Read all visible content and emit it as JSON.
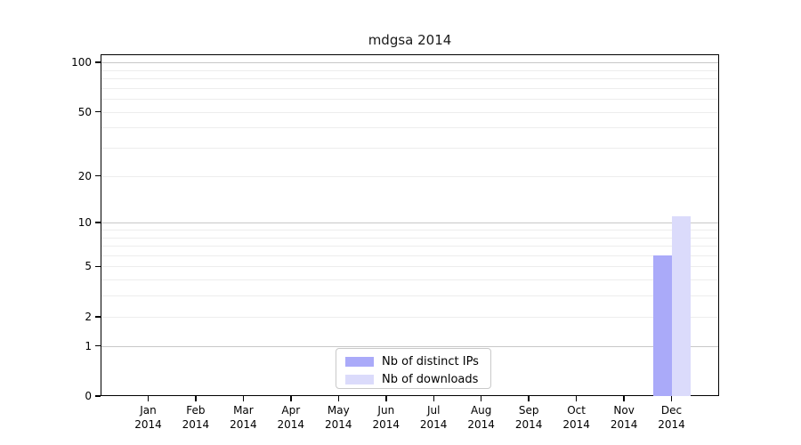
{
  "chart_data": {
    "type": "bar",
    "title": "mdgsa 2014",
    "x_categories": [
      {
        "month": "Jan",
        "year": "2014"
      },
      {
        "month": "Feb",
        "year": "2014"
      },
      {
        "month": "Mar",
        "year": "2014"
      },
      {
        "month": "Apr",
        "year": "2014"
      },
      {
        "month": "May",
        "year": "2014"
      },
      {
        "month": "Jun",
        "year": "2014"
      },
      {
        "month": "Jul",
        "year": "2014"
      },
      {
        "month": "Aug",
        "year": "2014"
      },
      {
        "month": "Sep",
        "year": "2014"
      },
      {
        "month": "Oct",
        "year": "2014"
      },
      {
        "month": "Nov",
        "year": "2014"
      },
      {
        "month": "Dec",
        "year": "2014"
      }
    ],
    "series": [
      {
        "name": "Nb of distinct IPs",
        "color": "#aaaaf9",
        "values": [
          0,
          0,
          0,
          0,
          0,
          0,
          0,
          0,
          0,
          0,
          0,
          6
        ]
      },
      {
        "name": "Nb of downloads",
        "color": "#dbdbfb",
        "values": [
          0,
          0,
          0,
          0,
          0,
          0,
          0,
          0,
          0,
          0,
          0,
          11
        ]
      }
    ],
    "y_axis": {
      "scale": "log1p",
      "tick_labels": [
        "0",
        "1",
        "2",
        "5",
        "10",
        "20",
        "50",
        "100"
      ],
      "tick_values": [
        0,
        1,
        2,
        5,
        10,
        20,
        50,
        100
      ],
      "major_gridlines": [
        1,
        10,
        100
      ],
      "minor_gridlines": [
        2,
        3,
        4,
        5,
        6,
        7,
        8,
        9,
        20,
        30,
        40,
        50,
        60,
        70,
        80,
        90
      ],
      "range": [
        0,
        112
      ]
    },
    "legend": {
      "position": "lower center",
      "entries": [
        "Nb of distinct IPs",
        "Nb of downloads"
      ]
    },
    "colors": {
      "frame": "#000000",
      "major_grid": "#c8c8c8",
      "minor_grid": "#ededed",
      "background": "#ffffff",
      "title_text": "#1a1a1a"
    }
  }
}
